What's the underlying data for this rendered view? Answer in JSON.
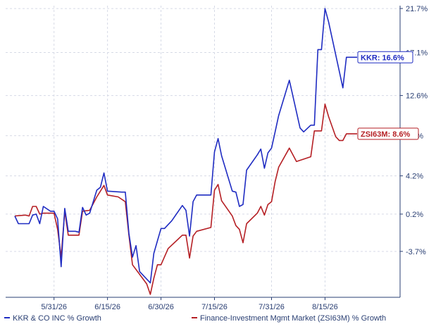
{
  "colors": {
    "kkr": "#1f2cc2",
    "industry": "#b51f24",
    "grid": "#d6dae6",
    "axis": "#2a3f73"
  },
  "chart_data": {
    "type": "line",
    "title": "",
    "xlabel": "",
    "ylabel": "",
    "y_axis_side": "right",
    "ylim": [
      -8.5,
      22
    ],
    "xlim": [
      "2026-05-20",
      "2026-08-24"
    ],
    "grid": true,
    "legend_placement": "bottom",
    "y_ticks": [
      21.7,
      17.1,
      12.6,
      8.4,
      4.2,
      0.2,
      -3.7
    ],
    "y_tick_labels": [
      "21.7%",
      "17.1%",
      "12.6%",
      "8.4%",
      "4.2%",
      "0.2%",
      "-3.7%"
    ],
    "x_ticks": [
      "2026-05-31",
      "2026-06-15",
      "2026-06-30",
      "2026-07-15",
      "2026-07-31",
      "2026-08-15"
    ],
    "x_tick_labels": [
      "5/31/26",
      "6/15/26",
      "6/30/26",
      "7/15/26",
      "7/31/26",
      "8/15/26"
    ],
    "series": [
      {
        "key": "kkr",
        "name": "KKR & CO INC % Growth",
        "callout": "KKR: 16.6%",
        "points": [
          [
            "2026-05-20",
            0.0
          ],
          [
            "2026-05-21",
            -0.8
          ],
          [
            "2026-05-23",
            -0.8
          ],
          [
            "2026-05-24",
            -0.8
          ],
          [
            "2026-05-25",
            0.1
          ],
          [
            "2026-05-26",
            0.2
          ],
          [
            "2026-05-27",
            -0.8
          ],
          [
            "2026-05-28",
            1.0
          ],
          [
            "2026-05-30",
            0.5
          ],
          [
            "2026-05-31",
            0.5
          ],
          [
            "2026-06-01",
            -0.3
          ],
          [
            "2026-06-02",
            -5.3
          ],
          [
            "2026-06-03",
            0.8
          ],
          [
            "2026-06-04",
            -1.6
          ],
          [
            "2026-06-05",
            -1.6
          ],
          [
            "2026-06-06",
            -1.6
          ],
          [
            "2026-06-07",
            -1.7
          ],
          [
            "2026-06-08",
            0.9
          ],
          [
            "2026-06-09",
            0.1
          ],
          [
            "2026-06-10",
            0.3
          ],
          [
            "2026-06-11",
            1.5
          ],
          [
            "2026-06-12",
            2.7
          ],
          [
            "2026-06-13",
            3.0
          ],
          [
            "2026-06-14",
            4.5
          ],
          [
            "2026-06-15",
            2.6
          ],
          [
            "2026-06-19",
            2.5
          ],
          [
            "2026-06-20",
            2.5
          ],
          [
            "2026-06-21",
            -1.8
          ],
          [
            "2026-06-22",
            -4.3
          ],
          [
            "2026-06-23",
            -3.1
          ],
          [
            "2026-06-24",
            -5.8
          ],
          [
            "2026-06-27",
            -7.0
          ],
          [
            "2026-06-28",
            -3.9
          ],
          [
            "2026-06-29",
            -2.6
          ],
          [
            "2026-06-30",
            -1.3
          ],
          [
            "2026-07-01",
            -1.3
          ],
          [
            "2026-07-02",
            -0.9
          ],
          [
            "2026-07-03",
            -0.5
          ],
          [
            "2026-07-06",
            1.1
          ],
          [
            "2026-07-07",
            0.6
          ],
          [
            "2026-07-08",
            -2.1
          ],
          [
            "2026-07-09",
            1.5
          ],
          [
            "2026-07-10",
            2.2
          ],
          [
            "2026-07-14",
            2.2
          ],
          [
            "2026-07-15",
            6.7
          ],
          [
            "2026-07-16",
            8.1
          ],
          [
            "2026-07-17",
            6.3
          ],
          [
            "2026-07-20",
            2.6
          ],
          [
            "2026-07-21",
            2.5
          ],
          [
            "2026-07-22",
            1.0
          ],
          [
            "2026-07-23",
            1.2
          ],
          [
            "2026-07-24",
            4.8
          ],
          [
            "2026-07-27",
            6.4
          ],
          [
            "2026-07-28",
            7.0
          ],
          [
            "2026-07-29",
            5.0
          ],
          [
            "2026-07-30",
            6.6
          ],
          [
            "2026-07-31",
            7.1
          ],
          [
            "2026-08-01",
            8.8
          ],
          [
            "2026-08-02",
            10.5
          ],
          [
            "2026-08-05",
            14.2
          ],
          [
            "2026-08-08",
            9.2
          ],
          [
            "2026-08-09",
            8.8
          ],
          [
            "2026-08-11",
            9.5
          ],
          [
            "2026-08-12",
            9.5
          ],
          [
            "2026-08-13",
            17.4
          ],
          [
            "2026-08-14",
            17.4
          ],
          [
            "2026-08-15",
            21.7
          ],
          [
            "2026-08-16",
            20.3
          ],
          [
            "2026-08-20",
            13.4
          ],
          [
            "2026-08-21",
            16.6
          ],
          [
            "2026-08-24",
            16.6
          ]
        ]
      },
      {
        "key": "industry",
        "name": "Finance-Investment Mgmt Market (ZSI63M) % Growth",
        "callout": "ZSI63M: 8.6%",
        "points": [
          [
            "2026-05-20",
            0.0
          ],
          [
            "2026-05-23",
            0.1
          ],
          [
            "2026-05-24",
            0.0
          ],
          [
            "2026-05-25",
            1.0
          ],
          [
            "2026-05-26",
            1.0
          ],
          [
            "2026-05-27",
            0.2
          ],
          [
            "2026-05-28",
            0.3
          ],
          [
            "2026-05-30",
            0.3
          ],
          [
            "2026-05-31",
            0.3
          ],
          [
            "2026-06-01",
            -1.4
          ],
          [
            "2026-06-02",
            -4.3
          ],
          [
            "2026-06-03",
            0.5
          ],
          [
            "2026-06-04",
            -2.0
          ],
          [
            "2026-06-07",
            -2.0
          ],
          [
            "2026-06-08",
            0.5
          ],
          [
            "2026-06-10",
            0.6
          ],
          [
            "2026-06-11",
            1.3
          ],
          [
            "2026-06-12",
            2.0
          ],
          [
            "2026-06-14",
            3.2
          ],
          [
            "2026-06-15",
            2.2
          ],
          [
            "2026-06-18",
            2.0
          ],
          [
            "2026-06-20",
            1.5
          ],
          [
            "2026-06-21",
            -2.0
          ],
          [
            "2026-06-22",
            -5.1
          ],
          [
            "2026-06-26",
            -7.1
          ],
          [
            "2026-06-27",
            -8.2
          ],
          [
            "2026-06-28",
            -6.5
          ],
          [
            "2026-06-29",
            -5.1
          ],
          [
            "2026-06-30",
            -5.1
          ],
          [
            "2026-07-02",
            -3.4
          ],
          [
            "2026-07-06",
            -2.0
          ],
          [
            "2026-07-07",
            -2.0
          ],
          [
            "2026-07-08",
            -4.4
          ],
          [
            "2026-07-09",
            -2.1
          ],
          [
            "2026-07-10",
            -1.6
          ],
          [
            "2026-07-14",
            -1.2
          ],
          [
            "2026-07-15",
            2.7
          ],
          [
            "2026-07-16",
            3.3
          ],
          [
            "2026-07-17",
            1.6
          ],
          [
            "2026-07-20",
            0.0
          ],
          [
            "2026-07-21",
            -1.0
          ],
          [
            "2026-07-22",
            -1.4
          ],
          [
            "2026-07-23",
            -2.8
          ],
          [
            "2026-07-24",
            -0.8
          ],
          [
            "2026-07-27",
            0.3
          ],
          [
            "2026-07-28",
            1.0
          ],
          [
            "2026-07-29",
            0.1
          ],
          [
            "2026-07-30",
            1.2
          ],
          [
            "2026-07-31",
            1.5
          ],
          [
            "2026-08-01",
            3.6
          ],
          [
            "2026-08-02",
            5.1
          ],
          [
            "2026-08-05",
            7.1
          ],
          [
            "2026-08-07",
            5.7
          ],
          [
            "2026-08-11",
            6.2
          ],
          [
            "2026-08-12",
            8.9
          ],
          [
            "2026-08-14",
            8.9
          ],
          [
            "2026-08-15",
            11.7
          ],
          [
            "2026-08-16",
            10.4
          ],
          [
            "2026-08-18",
            8.3
          ],
          [
            "2026-08-19",
            7.9
          ],
          [
            "2026-08-20",
            7.9
          ],
          [
            "2026-08-21",
            8.6
          ],
          [
            "2026-08-24",
            8.6
          ]
        ]
      }
    ]
  }
}
